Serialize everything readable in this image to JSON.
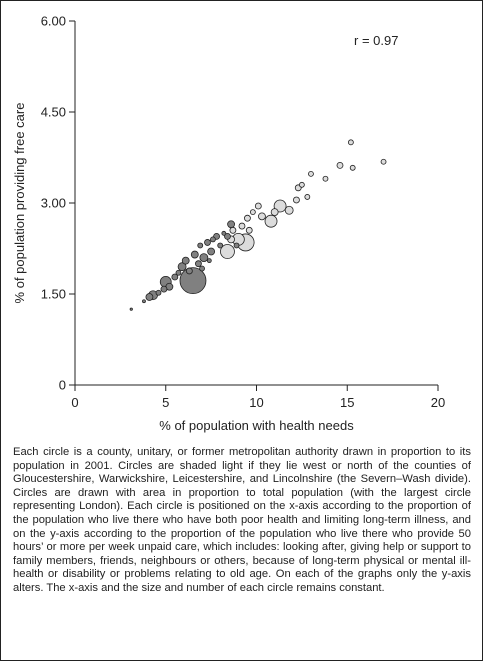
{
  "chart_data": {
    "type": "scatter",
    "title": "",
    "xlabel": "% of population with health needs",
    "ylabel": "% of population providing free care",
    "xlim": [
      0,
      20
    ],
    "ylim": [
      0,
      6
    ],
    "xticks": [
      "0",
      "5",
      "10",
      "15",
      "20"
    ],
    "yticks": [
      "0",
      "1.50",
      "3.00",
      "4.50",
      "6.00"
    ],
    "annotation": "r = 0.97",
    "grid": false,
    "legend": "none",
    "colors": {
      "light": "#dcdcdc",
      "dark": "#808080",
      "outline": "#222222"
    },
    "points": [
      {
        "x": 3.1,
        "y": 1.25,
        "size": 1.2,
        "shade": "dark"
      },
      {
        "x": 3.8,
        "y": 1.38,
        "size": 1.5,
        "shade": "dark"
      },
      {
        "x": 4.1,
        "y": 1.45,
        "size": 3.5,
        "shade": "dark"
      },
      {
        "x": 4.3,
        "y": 1.48,
        "size": 4.5,
        "shade": "dark"
      },
      {
        "x": 4.6,
        "y": 1.52,
        "size": 2.5,
        "shade": "dark"
      },
      {
        "x": 4.9,
        "y": 1.58,
        "size": 3.0,
        "shade": "dark"
      },
      {
        "x": 5.0,
        "y": 1.7,
        "size": 5.5,
        "shade": "dark"
      },
      {
        "x": 5.2,
        "y": 1.62,
        "size": 3.5,
        "shade": "dark"
      },
      {
        "x": 5.5,
        "y": 1.78,
        "size": 3.0,
        "shade": "dark"
      },
      {
        "x": 5.7,
        "y": 1.85,
        "size": 2.5,
        "shade": "dark"
      },
      {
        "x": 5.9,
        "y": 1.95,
        "size": 4.0,
        "shade": "dark"
      },
      {
        "x": 6.1,
        "y": 2.05,
        "size": 3.5,
        "shade": "dark"
      },
      {
        "x": 6.3,
        "y": 1.88,
        "size": 3.0,
        "shade": "dark"
      },
      {
        "x": 6.5,
        "y": 1.72,
        "size": 13.0,
        "shade": "dark"
      },
      {
        "x": 6.6,
        "y": 2.15,
        "size": 3.5,
        "shade": "dark"
      },
      {
        "x": 6.8,
        "y": 2.0,
        "size": 3.0,
        "shade": "dark"
      },
      {
        "x": 6.9,
        "y": 2.3,
        "size": 2.5,
        "shade": "dark"
      },
      {
        "x": 7.1,
        "y": 2.1,
        "size": 4.0,
        "shade": "dark"
      },
      {
        "x": 7.3,
        "y": 2.35,
        "size": 3.0,
        "shade": "dark"
      },
      {
        "x": 7.5,
        "y": 2.2,
        "size": 3.5,
        "shade": "dark"
      },
      {
        "x": 7.6,
        "y": 2.4,
        "size": 2.5,
        "shade": "dark"
      },
      {
        "x": 7.8,
        "y": 2.45,
        "size": 3.0,
        "shade": "dark"
      },
      {
        "x": 8.0,
        "y": 2.3,
        "size": 2.5,
        "shade": "dark"
      },
      {
        "x": 8.2,
        "y": 2.5,
        "size": 2.0,
        "shade": "dark"
      },
      {
        "x": 8.4,
        "y": 2.45,
        "size": 3.0,
        "shade": "dark"
      },
      {
        "x": 7.0,
        "y": 1.92,
        "size": 2.5,
        "shade": "dark"
      },
      {
        "x": 7.4,
        "y": 2.05,
        "size": 2.0,
        "shade": "dark"
      },
      {
        "x": 8.4,
        "y": 2.2,
        "size": 7.0,
        "shade": "light"
      },
      {
        "x": 8.6,
        "y": 2.4,
        "size": 3.5,
        "shade": "light"
      },
      {
        "x": 8.7,
        "y": 2.55,
        "size": 3.0,
        "shade": "light"
      },
      {
        "x": 9.0,
        "y": 2.4,
        "size": 6.0,
        "shade": "light"
      },
      {
        "x": 9.4,
        "y": 2.35,
        "size": 8.5,
        "shade": "light"
      },
      {
        "x": 9.2,
        "y": 2.62,
        "size": 3.0,
        "shade": "light"
      },
      {
        "x": 9.5,
        "y": 2.75,
        "size": 3.0,
        "shade": "light"
      },
      {
        "x": 9.8,
        "y": 2.85,
        "size": 2.5,
        "shade": "light"
      },
      {
        "x": 10.1,
        "y": 2.95,
        "size": 3.0,
        "shade": "light"
      },
      {
        "x": 10.3,
        "y": 2.78,
        "size": 3.5,
        "shade": "light"
      },
      {
        "x": 10.8,
        "y": 2.7,
        "size": 6.0,
        "shade": "light"
      },
      {
        "x": 11.0,
        "y": 2.85,
        "size": 3.5,
        "shade": "light"
      },
      {
        "x": 11.3,
        "y": 2.95,
        "size": 6.0,
        "shade": "light"
      },
      {
        "x": 11.8,
        "y": 2.88,
        "size": 4.0,
        "shade": "light"
      },
      {
        "x": 12.2,
        "y": 3.05,
        "size": 3.0,
        "shade": "light"
      },
      {
        "x": 12.3,
        "y": 3.25,
        "size": 3.0,
        "shade": "light"
      },
      {
        "x": 12.5,
        "y": 3.3,
        "size": 2.5,
        "shade": "light"
      },
      {
        "x": 12.8,
        "y": 3.1,
        "size": 2.5,
        "shade": "light"
      },
      {
        "x": 13.0,
        "y": 3.48,
        "size": 2.5,
        "shade": "light"
      },
      {
        "x": 13.8,
        "y": 3.4,
        "size": 2.5,
        "shade": "light"
      },
      {
        "x": 14.6,
        "y": 3.62,
        "size": 3.0,
        "shade": "light"
      },
      {
        "x": 15.3,
        "y": 3.58,
        "size": 2.5,
        "shade": "light"
      },
      {
        "x": 15.2,
        "y": 4.0,
        "size": 2.5,
        "shade": "light"
      },
      {
        "x": 17.0,
        "y": 3.68,
        "size": 2.5,
        "shade": "light"
      },
      {
        "x": 9.6,
        "y": 2.55,
        "size": 3.0,
        "shade": "light"
      },
      {
        "x": 8.9,
        "y": 2.3,
        "size": 2.5,
        "shade": "dark"
      },
      {
        "x": 8.6,
        "y": 2.65,
        "size": 3.5,
        "shade": "dark"
      }
    ]
  },
  "caption": "Each circle is a county, unitary, or former metropolitan authority drawn in proportion to its population in 2001. Circles are shaded light if they lie west or north of the counties of Gloucestershire, Warwickshire, Leicestershire, and Lincolnshire (the Severn–Wash divide). Circles are drawn with area in proportion to total population (with the largest circle representing London). Each circle is positioned on the x-axis according to the proportion of the population who live there who have both poor health and limiting long-term illness, and on the y-axis according to the proportion of the population who live there who provide 50 hours’ or more per week unpaid care, which includes: looking after, giving help or support to family members, friends, neighbours or others, because of long-term physical or mental ill-health or disability or problems relating to old age. On each of the graphs only the y-axis alters. The x-axis and the size and number of each circle remains constant."
}
